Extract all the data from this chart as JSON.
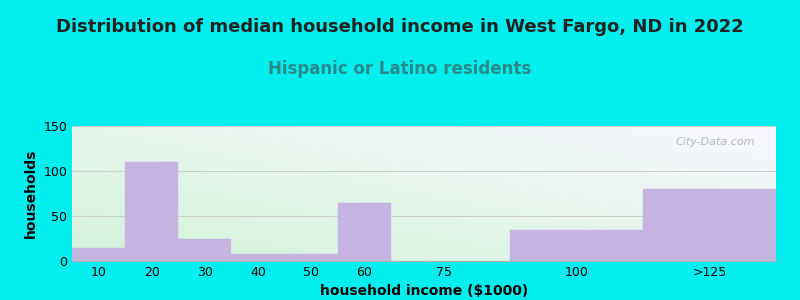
{
  "title": "Distribution of median household income in West Fargo, ND in 2022",
  "subtitle": "Hispanic or Latino residents",
  "xlabel": "household income ($1000)",
  "ylabel": "households",
  "bar_color": "#c5b3e0",
  "bar_edgecolor": "#c5b3e0",
  "background_outer": "#00eeee",
  "watermark": "City-Data.com",
  "ylim": [
    0,
    150
  ],
  "yticks": [
    0,
    50,
    100,
    150
  ],
  "xtick_labels": [
    "10",
    "20",
    "30",
    "40",
    "50",
    "60",
    "75",
    "100",
    ">125"
  ],
  "xtick_positions": [
    10,
    20,
    30,
    40,
    50,
    60,
    75,
    100,
    125
  ],
  "bin_edges": [
    5,
    15,
    25,
    35,
    45,
    55,
    65,
    87.5,
    112.5,
    137.5
  ],
  "values": [
    15,
    110,
    25,
    8,
    8,
    65,
    0,
    35,
    80
  ],
  "title_fontsize": 13,
  "subtitle_fontsize": 12,
  "subtitle_color": "#2a8a8a",
  "title_color": "#222222",
  "axis_label_fontsize": 10,
  "tick_fontsize": 9,
  "watermark_color": "#aaaaaa"
}
